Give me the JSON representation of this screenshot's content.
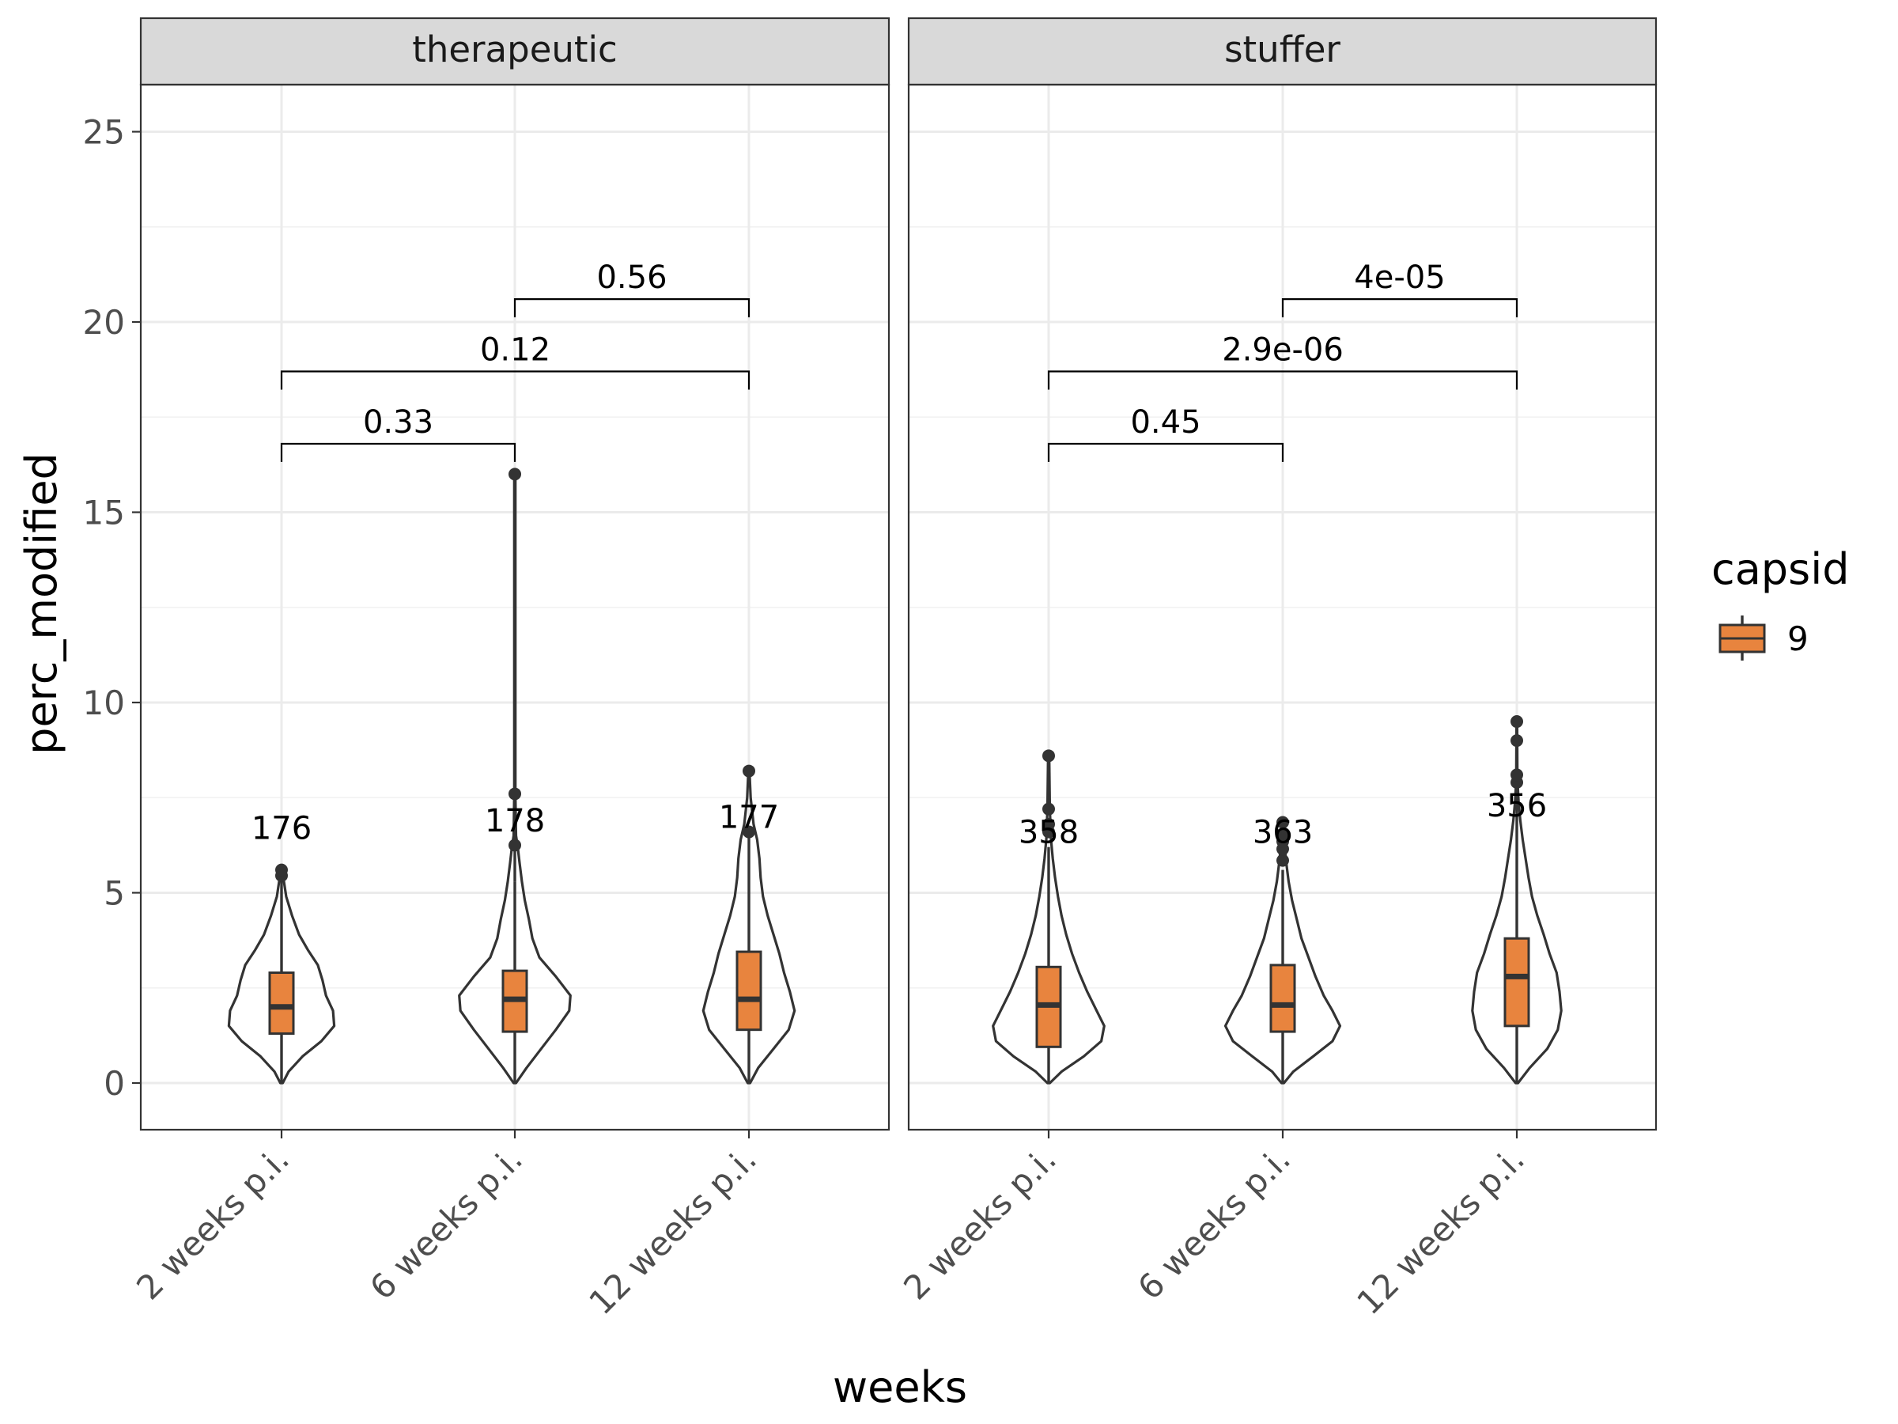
{
  "chart_data": {
    "type": "violin",
    "xlabel": "weeks",
    "ylabel": "perc_modified",
    "categories": [
      "2 weeks p.i.",
      "6 weeks p.i.",
      "12 weeks p.i."
    ],
    "y_ticks": [
      0,
      5,
      10,
      15,
      20,
      25
    ],
    "ylim": [
      -1.2,
      26.2
    ],
    "grid": true,
    "legend": {
      "title": "capsid",
      "position": "right",
      "entries": [
        {
          "label": "9",
          "color": "#e8843e"
        }
      ]
    },
    "fill_color": "#e8843e",
    "line_color": "#333333",
    "panels": [
      {
        "facet": "therapeutic",
        "groups": [
          {
            "category": "2 weeks p.i.",
            "n": "176",
            "n_y": 6.7,
            "box": {
              "q1": 1.3,
              "median": 2.0,
              "q3": 2.9,
              "whisker_low": 0.0,
              "whisker_high": 5.3
            },
            "outliers": [
              5.45,
              5.6
            ],
            "violin_profile": [
              [
                0,
                0.02
              ],
              [
                0.3,
                0.12
              ],
              [
                0.7,
                0.36
              ],
              [
                1.1,
                0.68
              ],
              [
                1.5,
                0.9
              ],
              [
                1.9,
                0.88
              ],
              [
                2.3,
                0.76
              ],
              [
                2.7,
                0.7
              ],
              [
                3.1,
                0.62
              ],
              [
                3.5,
                0.45
              ],
              [
                3.9,
                0.3
              ],
              [
                4.4,
                0.18
              ],
              [
                4.9,
                0.08
              ],
              [
                5.3,
                0.04
              ],
              [
                5.6,
                0.02
              ]
            ]
          },
          {
            "category": "6 weeks p.i.",
            "n": "178",
            "n_y": 6.9,
            "box": {
              "q1": 1.35,
              "median": 2.2,
              "q3": 2.95,
              "whisker_low": 0.0,
              "whisker_high": 5.3
            },
            "outliers": [
              6.25,
              7.6,
              16.0
            ],
            "violin_profile": [
              [
                0,
                0.02
              ],
              [
                0.4,
                0.2
              ],
              [
                0.9,
                0.45
              ],
              [
                1.4,
                0.7
              ],
              [
                1.9,
                0.93
              ],
              [
                2.3,
                0.95
              ],
              [
                2.8,
                0.7
              ],
              [
                3.3,
                0.42
              ],
              [
                3.8,
                0.3
              ],
              [
                4.3,
                0.24
              ],
              [
                4.8,
                0.17
              ],
              [
                5.3,
                0.12
              ],
              [
                5.8,
                0.08
              ],
              [
                6.2,
                0.05
              ],
              [
                6.5,
                0.02
              ],
              [
                7.6,
                0.01
              ],
              [
                16.0,
                0.01
              ]
            ]
          },
          {
            "category": "12 weeks p.i.",
            "n": "177",
            "n_y": 7.0,
            "box": {
              "q1": 1.4,
              "median": 2.2,
              "q3": 3.45,
              "whisker_low": 0.0,
              "whisker_high": 6.6
            },
            "outliers": [
              6.6,
              8.2
            ],
            "violin_profile": [
              [
                0,
                0.02
              ],
              [
                0.4,
                0.16
              ],
              [
                0.9,
                0.42
              ],
              [
                1.4,
                0.68
              ],
              [
                1.9,
                0.78
              ],
              [
                2.4,
                0.7
              ],
              [
                2.9,
                0.6
              ],
              [
                3.4,
                0.52
              ],
              [
                3.9,
                0.42
              ],
              [
                4.4,
                0.32
              ],
              [
                4.9,
                0.24
              ],
              [
                5.4,
                0.2
              ],
              [
                5.9,
                0.18
              ],
              [
                6.4,
                0.14
              ],
              [
                6.8,
                0.08
              ],
              [
                7.5,
                0.03
              ],
              [
                8.2,
                0.01
              ]
            ]
          }
        ],
        "comparisons": [
          {
            "from": "2 weeks p.i.",
            "to": "6 weeks p.i.",
            "label": "0.33",
            "y": 16.8
          },
          {
            "from": "2 weeks p.i.",
            "to": "12 weeks p.i.",
            "label": "0.12",
            "y": 18.7
          },
          {
            "from": "6 weeks p.i.",
            "to": "12 weeks p.i.",
            "label": "0.56",
            "y": 20.6
          }
        ]
      },
      {
        "facet": "stuffer",
        "groups": [
          {
            "category": "2 weeks p.i.",
            "n": "358",
            "n_y": 6.6,
            "box": {
              "q1": 0.95,
              "median": 2.05,
              "q3": 3.05,
              "whisker_low": 0.0,
              "whisker_high": 6.2
            },
            "outliers": [
              6.6,
              6.8,
              7.2,
              8.6
            ],
            "violin_profile": [
              [
                0,
                0.02
              ],
              [
                0.3,
                0.22
              ],
              [
                0.7,
                0.6
              ],
              [
                1.1,
                0.9
              ],
              [
                1.5,
                0.95
              ],
              [
                1.9,
                0.82
              ],
              [
                2.4,
                0.66
              ],
              [
                2.9,
                0.52
              ],
              [
                3.4,
                0.4
              ],
              [
                3.9,
                0.3
              ],
              [
                4.4,
                0.22
              ],
              [
                4.9,
                0.16
              ],
              [
                5.4,
                0.11
              ],
              [
                5.9,
                0.07
              ],
              [
                6.4,
                0.04
              ],
              [
                7.2,
                0.02
              ],
              [
                8.6,
                0.01
              ]
            ]
          },
          {
            "category": "6 weeks p.i.",
            "n": "363",
            "n_y": 6.6,
            "box": {
              "q1": 1.35,
              "median": 2.05,
              "q3": 3.1,
              "whisker_low": 0.0,
              "whisker_high": 5.6
            },
            "outliers": [
              5.85,
              6.15,
              6.35,
              6.55,
              6.85
            ],
            "violin_profile": [
              [
                0,
                0.02
              ],
              [
                0.3,
                0.18
              ],
              [
                0.7,
                0.52
              ],
              [
                1.1,
                0.85
              ],
              [
                1.5,
                0.98
              ],
              [
                1.9,
                0.85
              ],
              [
                2.3,
                0.7
              ],
              [
                2.8,
                0.56
              ],
              [
                3.3,
                0.44
              ],
              [
                3.8,
                0.32
              ],
              [
                4.3,
                0.24
              ],
              [
                4.8,
                0.16
              ],
              [
                5.3,
                0.1
              ],
              [
                5.8,
                0.06
              ],
              [
                6.3,
                0.03
              ],
              [
                6.9,
                0.01
              ]
            ]
          },
          {
            "category": "12 weeks p.i.",
            "n": "356",
            "n_y": 7.3,
            "box": {
              "q1": 1.5,
              "median": 2.8,
              "q3": 3.8,
              "whisker_low": 0.0,
              "whisker_high": 7.6
            },
            "outliers": [
              7.9,
              8.1,
              9.0,
              9.5
            ],
            "violin_profile": [
              [
                0,
                0.02
              ],
              [
                0.4,
                0.22
              ],
              [
                0.9,
                0.52
              ],
              [
                1.4,
                0.7
              ],
              [
                1.9,
                0.76
              ],
              [
                2.4,
                0.73
              ],
              [
                2.9,
                0.68
              ],
              [
                3.4,
                0.56
              ],
              [
                3.9,
                0.46
              ],
              [
                4.4,
                0.35
              ],
              [
                4.9,
                0.26
              ],
              [
                5.4,
                0.2
              ],
              [
                5.9,
                0.15
              ],
              [
                6.4,
                0.1
              ],
              [
                6.9,
                0.06
              ],
              [
                7.4,
                0.03
              ],
              [
                8.0,
                0.01
              ],
              [
                9.5,
                0.005
              ]
            ]
          }
        ],
        "comparisons": [
          {
            "from": "2 weeks p.i.",
            "to": "6 weeks p.i.",
            "label": "0.45",
            "y": 16.8
          },
          {
            "from": "2 weeks p.i.",
            "to": "12 weeks p.i.",
            "label": "2.9e-06",
            "y": 18.7
          },
          {
            "from": "6 weeks p.i.",
            "to": "12 weeks p.i.",
            "label": "4e-05",
            "y": 20.6
          }
        ]
      }
    ]
  }
}
